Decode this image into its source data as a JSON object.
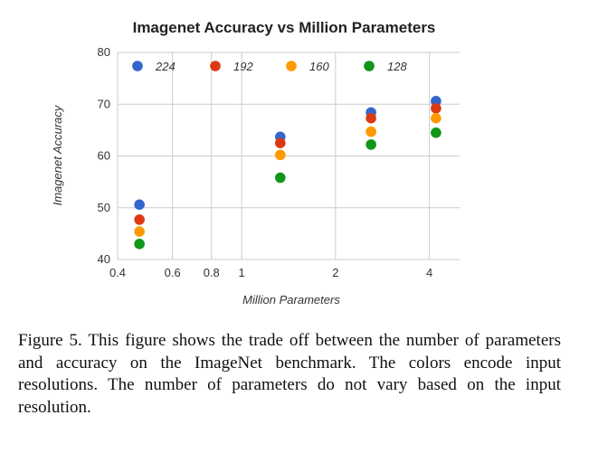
{
  "chart_data": {
    "type": "scatter",
    "title": "Imagenet Accuracy vs Million Parameters",
    "xlabel": "Million Parameters",
    "ylabel": "Imagenet Accuracy",
    "x_scale": "log",
    "xlim": [
      0.4,
      5.0
    ],
    "ylim": [
      40,
      80
    ],
    "x_ticks": [
      0.4,
      0.6,
      0.8,
      1,
      2,
      4
    ],
    "x_tick_labels": [
      "0.4",
      "0.6",
      "0.8",
      "1",
      "2",
      "4"
    ],
    "y_ticks": [
      40,
      50,
      60,
      70,
      80
    ],
    "y_tick_labels": [
      "40",
      "50",
      "60",
      "70",
      "80"
    ],
    "grid": true,
    "legend_position": "top",
    "x": [
      0.47,
      1.33,
      2.6,
      4.2
    ],
    "series": [
      {
        "name": "224",
        "color": "#3366cc",
        "values": [
          50.6,
          63.7,
          68.4,
          70.6
        ]
      },
      {
        "name": "192",
        "color": "#dc3912",
        "values": [
          47.7,
          62.5,
          67.3,
          69.2
        ]
      },
      {
        "name": "160",
        "color": "#ff9900",
        "values": [
          45.4,
          60.2,
          64.7,
          67.3
        ]
      },
      {
        "name": "128",
        "color": "#109618",
        "values": [
          43.0,
          55.8,
          62.2,
          64.5
        ]
      }
    ]
  },
  "caption": "Figure 5. This figure shows the trade off between the number of parameters and accuracy on the ImageNet benchmark. The colors encode input resolutions. The number of parameters do not vary based on the input resolution."
}
